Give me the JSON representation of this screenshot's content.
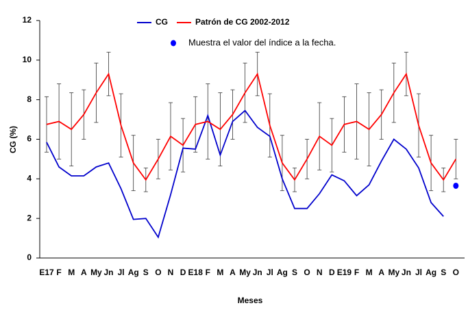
{
  "chart_data": {
    "type": "line",
    "xlabel": "Meses",
    "ylabel": "CG (%)",
    "categories": [
      "E17",
      "F",
      "M",
      "A",
      "My",
      "Jn",
      "Jl",
      "Ag",
      "S",
      "O",
      "N",
      "D",
      "E18",
      "F",
      "M",
      "A",
      "My",
      "Jn",
      "Jl",
      "Ag",
      "S",
      "O",
      "N",
      "D",
      "E19",
      "F",
      "M",
      "A",
      "My",
      "Jn",
      "Jl",
      "Ag",
      "S",
      "O"
    ],
    "ylim": [
      0,
      12
    ],
    "yticks": [
      0,
      2,
      4,
      6,
      8,
      10,
      12
    ],
    "series": [
      {
        "name": "CG",
        "color": "#0000cc",
        "values": [
          5.85,
          4.6,
          4.15,
          4.15,
          4.6,
          4.8,
          3.5,
          1.95,
          2.0,
          1.05,
          3.2,
          5.55,
          5.5,
          7.2,
          5.2,
          6.9,
          7.45,
          6.6,
          6.15,
          4.0,
          2.5,
          2.5,
          3.25,
          4.2,
          3.9,
          3.15,
          3.7,
          4.9,
          6.0,
          5.5,
          4.55,
          2.8,
          2.1,
          null
        ]
      },
      {
        "name": "Patrón  de CG 2002-2012",
        "color": "#ff0000",
        "values": [
          6.75,
          6.9,
          6.5,
          7.25,
          8.35,
          9.3,
          6.7,
          4.8,
          3.95,
          5.0,
          6.15,
          5.7,
          6.75,
          6.9,
          6.5,
          7.25,
          8.35,
          9.3,
          6.7,
          4.8,
          3.95,
          5.0,
          6.15,
          5.7,
          6.75,
          6.9,
          6.5,
          7.25,
          8.35,
          9.3,
          6.7,
          4.8,
          3.95,
          5.0
        ],
        "errors": [
          1.4,
          1.9,
          1.85,
          1.25,
          1.5,
          1.1,
          1.6,
          1.4,
          0.6,
          1.0,
          1.7,
          1.35,
          1.4,
          1.9,
          1.85,
          1.25,
          1.5,
          1.1,
          1.6,
          1.4,
          0.6,
          1.0,
          1.7,
          1.35,
          1.4,
          1.9,
          1.85,
          1.25,
          1.5,
          1.1,
          1.6,
          1.4,
          0.6,
          1.0
        ]
      },
      {
        "name": "Muestra el valor del índice a la fecha.",
        "color": "#0000ff",
        "marker": "dot",
        "values": [
          null,
          null,
          null,
          null,
          null,
          null,
          null,
          null,
          null,
          null,
          null,
          null,
          null,
          null,
          null,
          null,
          null,
          null,
          null,
          null,
          null,
          null,
          null,
          null,
          null,
          null,
          null,
          null,
          null,
          null,
          null,
          null,
          null,
          3.65
        ]
      }
    ]
  }
}
